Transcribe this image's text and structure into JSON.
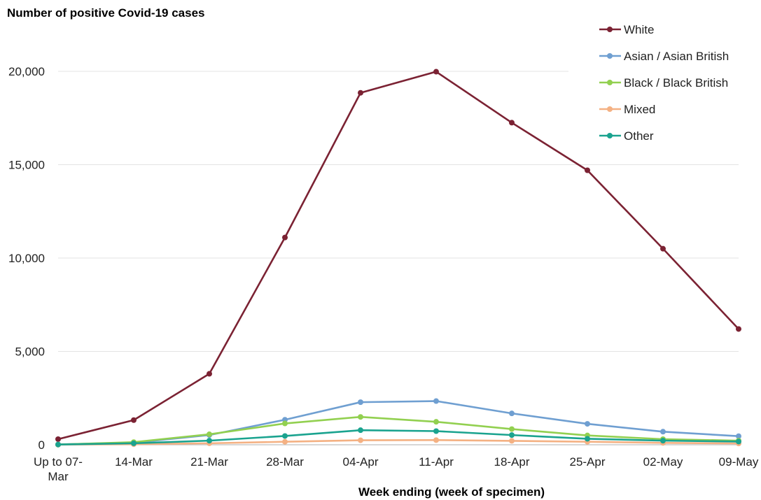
{
  "chart_data": {
    "type": "line",
    "ylabel": "Number of positive Covid-19 cases",
    "xlabel": "Week ending (week of specimen)",
    "categories": [
      [
        "Up to 07-",
        "Mar"
      ],
      [
        "14-Mar"
      ],
      [
        "21-Mar"
      ],
      [
        "28-Mar"
      ],
      [
        "04-Apr"
      ],
      [
        "11-Apr"
      ],
      [
        "18-Apr"
      ],
      [
        "25-Apr"
      ],
      [
        "02-May"
      ],
      [
        "09-May"
      ]
    ],
    "ylim": [
      0,
      20000
    ],
    "yticks": [
      0,
      5000,
      10000,
      15000,
      20000
    ],
    "ytick_labels": [
      "0",
      "5,000",
      "10,000",
      "15,000",
      "20,000"
    ],
    "grid": "horizontal",
    "legend_position": "top-right",
    "series": [
      {
        "name": "White",
        "color": "#7b2233",
        "values": [
          300,
          1320,
          3800,
          11100,
          18850,
          19980,
          17250,
          14700,
          10500,
          6200
        ]
      },
      {
        "name": "Asian / Asian British",
        "color": "#6f9fd1",
        "values": [
          20,
          110,
          520,
          1340,
          2280,
          2340,
          1680,
          1120,
          700,
          460
        ]
      },
      {
        "name": "Black / Black British",
        "color": "#92d050",
        "values": [
          10,
          140,
          560,
          1140,
          1490,
          1230,
          840,
          500,
          300,
          220
        ]
      },
      {
        "name": "Mixed",
        "color": "#f4b183",
        "values": [
          5,
          30,
          80,
          160,
          240,
          250,
          210,
          160,
          100,
          70
        ]
      },
      {
        "name": "Other",
        "color": "#1aa38f",
        "values": [
          10,
          80,
          220,
          470,
          780,
          730,
          520,
          320,
          220,
          170
        ]
      }
    ]
  }
}
